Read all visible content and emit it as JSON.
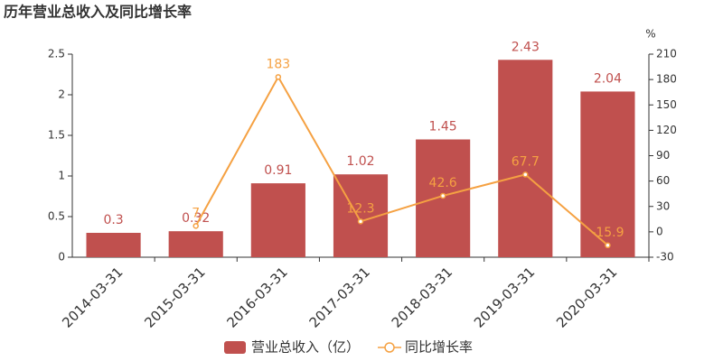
{
  "chart_data": {
    "type": "bar-line",
    "title": "历年营业总收入及同比增长率",
    "categories": [
      "2014-03-31",
      "2015-03-31",
      "2016-03-31",
      "2017-03-31",
      "2018-03-31",
      "2019-03-31",
      "2020-03-31"
    ],
    "series": [
      {
        "name": "营业总收入（亿）",
        "type": "bar",
        "color": "#c0504e",
        "values": [
          0.3,
          0.32,
          0.91,
          1.02,
          1.45,
          2.43,
          2.04
        ]
      },
      {
        "name": "同比增长率",
        "type": "line",
        "axis": "y2",
        "color": "#f5a142",
        "values": [
          null,
          7,
          183,
          12.3,
          42.6,
          67.7,
          -15.9
        ]
      }
    ],
    "ylim": [
      0,
      2.5
    ],
    "yticks": [
      0,
      0.5,
      1,
      1.5,
      2,
      2.5
    ],
    "y2label": "%",
    "y2lim": [
      -30,
      210
    ],
    "y2ticks": [
      -30,
      0,
      30,
      60,
      90,
      120,
      150,
      180,
      210
    ],
    "legend": "bottom"
  }
}
